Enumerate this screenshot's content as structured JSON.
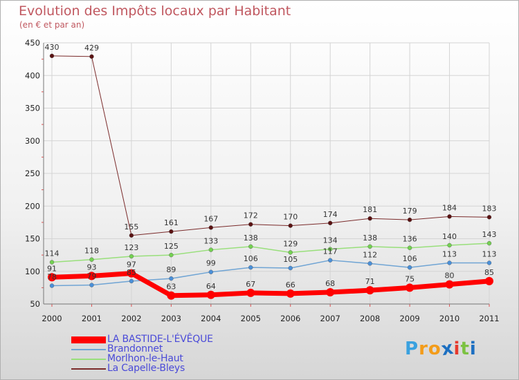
{
  "title": "Evolution des Impôts locaux par Habitant",
  "subtitle": "(en € et par an)",
  "brand": {
    "text": "Proxiti",
    "letters": [
      "P",
      "r",
      "o",
      "x",
      "i",
      "t",
      "i"
    ],
    "letter_colors": [
      "#3aa1df",
      "#f39c1a",
      "#f39c1a",
      "#1c6fc1",
      "#e63a2e",
      "#7cc242",
      "#1c6fc1"
    ]
  },
  "chart_data": {
    "type": "line",
    "title": "Evolution des Impôts locaux par Habitant",
    "subtitle": "(en € et par an)",
    "xlabel": "",
    "ylabel": "",
    "categories": [
      "2000",
      "2001",
      "2002",
      "2003",
      "2004",
      "2005",
      "2006",
      "2007",
      "2008",
      "2009",
      "2010",
      "2011"
    ],
    "ylim": [
      50,
      450
    ],
    "yticks": [
      50,
      100,
      150,
      200,
      250,
      300,
      350,
      400,
      450
    ],
    "grid": true,
    "legend_position": "bottom-left",
    "series": [
      {
        "name": "La Capelle-Bleys",
        "color": "#7a2a2a",
        "marker_color": "#5a1212",
        "width": 1,
        "values": [
          430,
          429,
          155,
          161,
          167,
          172,
          170,
          174,
          181,
          179,
          184,
          183
        ]
      },
      {
        "name": "Morlhon-le-Haut",
        "color": "#98df7a",
        "marker_color": "#74d152",
        "width": 1.5,
        "values": [
          114,
          118,
          123,
          125,
          133,
          138,
          129,
          134,
          138,
          136,
          140,
          143
        ]
      },
      {
        "name": "Brandonnet",
        "color": "#6fa4d4",
        "marker_color": "#4a90d9",
        "width": 1.5,
        "values": [
          78,
          79,
          85,
          89,
          99,
          106,
          105,
          117,
          112,
          106,
          113,
          113
        ]
      },
      {
        "name": "LA BASTIDE-L'ÉVÊQUE",
        "color": "#ff0000",
        "marker_color": "#ff0000",
        "width": 7,
        "values": [
          91,
          93,
          97,
          63,
          64,
          67,
          66,
          68,
          71,
          75,
          80,
          85
        ]
      }
    ],
    "legend_order": [
      "LA BASTIDE-L'ÉVÊQUE",
      "Brandonnet",
      "Morlhon-le-Haut",
      "La Capelle-Bleys"
    ]
  }
}
